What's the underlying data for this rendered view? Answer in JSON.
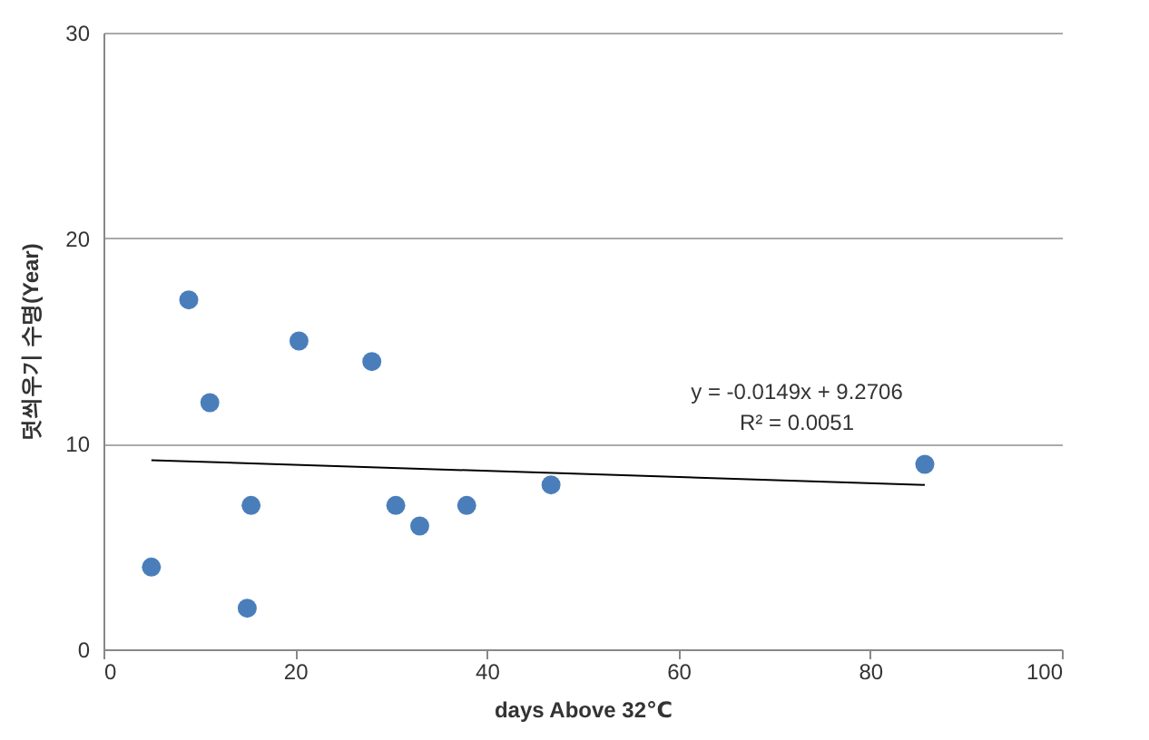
{
  "chart_data": {
    "type": "scatter",
    "xlabel": "days Above 32℃",
    "ylabel": "덧씌우기 수명(Year)",
    "xlim": [
      0,
      100
    ],
    "xticks": [
      0,
      20,
      40,
      60,
      80,
      100
    ],
    "ylim": [
      0,
      30
    ],
    "yticks": [
      0,
      10,
      20,
      30
    ],
    "grid": "y",
    "series": [
      {
        "marker": "circle",
        "color": "#4a7ebb",
        "x": [
          5.0,
          8.9,
          11.1,
          15.4,
          15.0,
          20.4,
          28.0,
          30.5,
          33.0,
          37.9,
          46.7,
          85.7
        ],
        "values": [
          4,
          17,
          12,
          7,
          2,
          15,
          14,
          7,
          6,
          7,
          8,
          9
        ]
      },
      {
        "type": "line",
        "marker": "none",
        "color": "#000000",
        "x": [
          5.0,
          85.7
        ],
        "values": [
          9.2,
          8.0
        ]
      }
    ],
    "annotations": [
      "y = -0.0149x + 9.2706",
      "R² = 0.0051"
    ]
  }
}
